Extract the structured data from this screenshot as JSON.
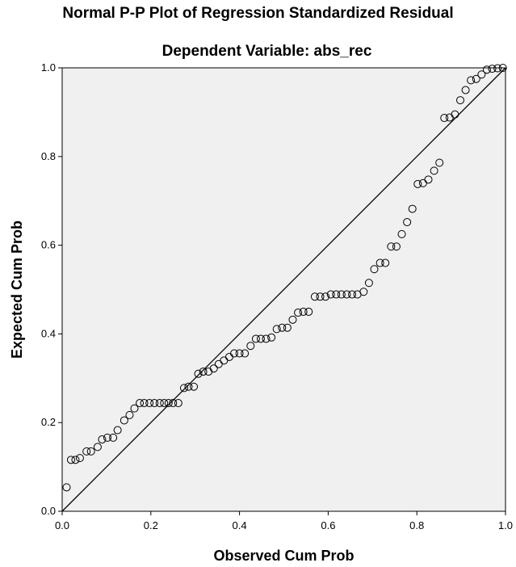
{
  "chart_data": {
    "type": "scatter",
    "title": "Normal P-P Plot of Regression Standardized Residual",
    "subtitle": "Dependent Variable: abs_rec",
    "xlabel": "Observed Cum Prob",
    "ylabel": "Expected Cum Prob",
    "xlim": [
      0.0,
      1.0
    ],
    "ylim": [
      0.0,
      1.0
    ],
    "xticks": [
      "0.0",
      "0.2",
      "0.4",
      "0.6",
      "0.8",
      "1.0"
    ],
    "yticks": [
      "0.0",
      "0.2",
      "0.4",
      "0.6",
      "0.8",
      "1.0"
    ],
    "grid": false,
    "reference_line": {
      "from": [
        0.0,
        0.0
      ],
      "to": [
        1.0,
        1.0
      ]
    },
    "colors": {
      "plot_background": "#f0f0f0",
      "marker_stroke": "#000000",
      "line": "#000000"
    },
    "points": [
      [
        0.01,
        0.054
      ],
      [
        0.02,
        0.116
      ],
      [
        0.03,
        0.116
      ],
      [
        0.04,
        0.12
      ],
      [
        0.055,
        0.135
      ],
      [
        0.065,
        0.135
      ],
      [
        0.08,
        0.145
      ],
      [
        0.09,
        0.162
      ],
      [
        0.102,
        0.166
      ],
      [
        0.115,
        0.166
      ],
      [
        0.125,
        0.183
      ],
      [
        0.14,
        0.205
      ],
      [
        0.152,
        0.217
      ],
      [
        0.163,
        0.232
      ],
      [
        0.175,
        0.244
      ],
      [
        0.185,
        0.244
      ],
      [
        0.197,
        0.244
      ],
      [
        0.208,
        0.244
      ],
      [
        0.22,
        0.244
      ],
      [
        0.23,
        0.244
      ],
      [
        0.24,
        0.244
      ],
      [
        0.25,
        0.244
      ],
      [
        0.262,
        0.244
      ],
      [
        0.275,
        0.278
      ],
      [
        0.285,
        0.281
      ],
      [
        0.297,
        0.281
      ],
      [
        0.307,
        0.31
      ],
      [
        0.318,
        0.315
      ],
      [
        0.33,
        0.315
      ],
      [
        0.342,
        0.322
      ],
      [
        0.353,
        0.332
      ],
      [
        0.365,
        0.34
      ],
      [
        0.377,
        0.348
      ],
      [
        0.388,
        0.356
      ],
      [
        0.4,
        0.356
      ],
      [
        0.412,
        0.356
      ],
      [
        0.425,
        0.373
      ],
      [
        0.437,
        0.389
      ],
      [
        0.448,
        0.389
      ],
      [
        0.46,
        0.389
      ],
      [
        0.472,
        0.392
      ],
      [
        0.484,
        0.411
      ],
      [
        0.496,
        0.414
      ],
      [
        0.508,
        0.414
      ],
      [
        0.52,
        0.432
      ],
      [
        0.532,
        0.448
      ],
      [
        0.544,
        0.45
      ],
      [
        0.556,
        0.45
      ],
      [
        0.57,
        0.484
      ],
      [
        0.582,
        0.484
      ],
      [
        0.594,
        0.484
      ],
      [
        0.606,
        0.489
      ],
      [
        0.618,
        0.489
      ],
      [
        0.63,
        0.489
      ],
      [
        0.642,
        0.489
      ],
      [
        0.654,
        0.489
      ],
      [
        0.666,
        0.489
      ],
      [
        0.68,
        0.495
      ],
      [
        0.692,
        0.515
      ],
      [
        0.704,
        0.546
      ],
      [
        0.717,
        0.56
      ],
      [
        0.729,
        0.56
      ],
      [
        0.742,
        0.597
      ],
      [
        0.754,
        0.597
      ],
      [
        0.766,
        0.625
      ],
      [
        0.778,
        0.652
      ],
      [
        0.79,
        0.682
      ],
      [
        0.802,
        0.738
      ],
      [
        0.814,
        0.74
      ],
      [
        0.826,
        0.748
      ],
      [
        0.839,
        0.768
      ],
      [
        0.851,
        0.786
      ],
      [
        0.862,
        0.887
      ],
      [
        0.874,
        0.888
      ],
      [
        0.886,
        0.895
      ],
      [
        0.898,
        0.927
      ],
      [
        0.91,
        0.95
      ],
      [
        0.922,
        0.972
      ],
      [
        0.934,
        0.975
      ],
      [
        0.946,
        0.985
      ],
      [
        0.958,
        0.996
      ],
      [
        0.97,
        0.998
      ],
      [
        0.982,
        0.999
      ],
      [
        0.994,
        1.0
      ]
    ]
  }
}
